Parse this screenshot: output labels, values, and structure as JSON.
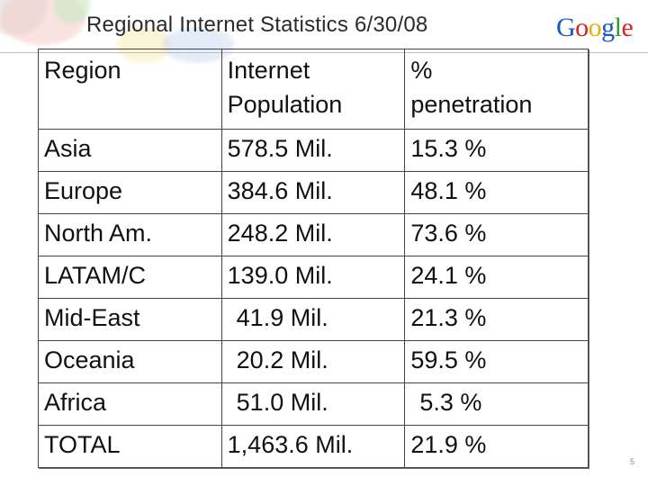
{
  "slide": {
    "title": "Regional Internet Statistics 6/30/08",
    "logo": {
      "letters": [
        "G",
        "o",
        "o",
        "g",
        "l",
        "e"
      ],
      "colors": [
        "#1a55c9",
        "#d6261f",
        "#e7b106",
        "#1a55c9",
        "#2e9b2e",
        "#d6261f"
      ]
    },
    "page_number": "5"
  },
  "table": {
    "headers": [
      "Region",
      "Internet\nPopulation",
      "%\npenetration"
    ],
    "header_lines": [
      [
        "Region"
      ],
      [
        "Internet",
        "Population"
      ],
      [
        "%",
        "penetration"
      ]
    ],
    "rows": [
      {
        "region": "Asia",
        "population": "578.5 Mil.",
        "penetration": "15.3 %"
      },
      {
        "region": "Europe",
        "population": "384.6 Mil.",
        "penetration": "48.1 %"
      },
      {
        "region": "North Am.",
        "population": "248.2 Mil.",
        "penetration": "73.6 %"
      },
      {
        "region": "LATAM/C",
        "population": "139.0 Mil.",
        "penetration": "24.1 %"
      },
      {
        "region": "Mid-East",
        "population": "41.9 Mil.",
        "penetration": "21.3 %"
      },
      {
        "region": "Oceania",
        "population": "20.2 Mil.",
        "penetration": "59.5 %"
      },
      {
        "region": "Africa",
        "population": "51.0 Mil.",
        "penetration": "5.3 %"
      },
      {
        "region": "TOTAL",
        "population": "1,463.6 Mil.",
        "penetration": "21.9 %"
      }
    ]
  }
}
